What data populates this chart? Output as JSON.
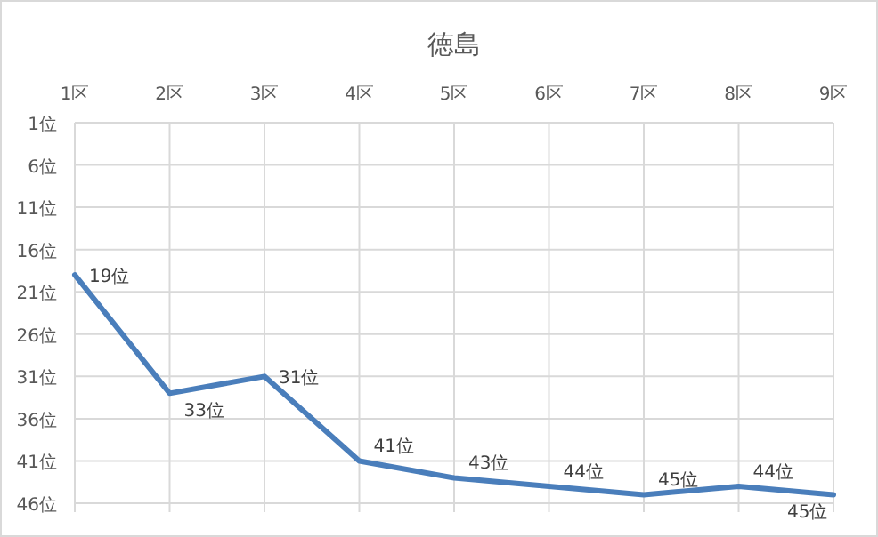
{
  "chart_data": {
    "type": "line",
    "title": "徳島",
    "categories": [
      "1区",
      "2区",
      "3区",
      "4区",
      "5区",
      "6区",
      "7区",
      "8区",
      "9区"
    ],
    "values": [
      19,
      33,
      31,
      41,
      43,
      44,
      45,
      44,
      45
    ],
    "value_labels": [
      "19位",
      "33位",
      "31位",
      "41位",
      "43位",
      "44位",
      "45位",
      "44位",
      "45位"
    ],
    "color": "#4a7ebb",
    "ylim": [
      46,
      1
    ],
    "yticks": [
      {
        "value": 1,
        "label": "1位"
      },
      {
        "value": 6,
        "label": "6位"
      },
      {
        "value": 11,
        "label": "11位"
      },
      {
        "value": 16,
        "label": "16位"
      },
      {
        "value": 21,
        "label": "21位"
      },
      {
        "value": 26,
        "label": "26位"
      },
      {
        "value": 31,
        "label": "31位"
      },
      {
        "value": 36,
        "label": "36位"
      },
      {
        "value": 41,
        "label": "41位"
      },
      {
        "value": 46,
        "label": "46位"
      }
    ],
    "grid": true,
    "marker": "none",
    "line_style": "solid",
    "legend": false
  }
}
